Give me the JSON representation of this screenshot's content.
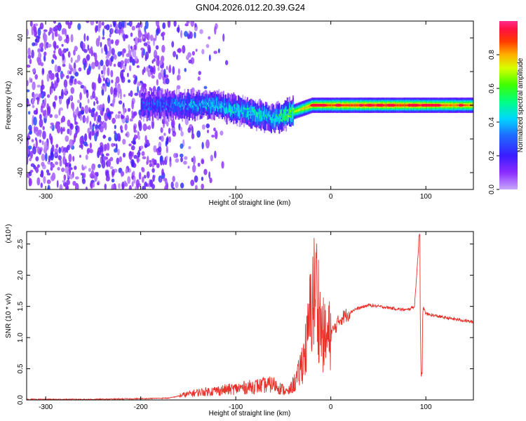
{
  "figure": {
    "title": "GN04.2026.012.20.39.G24"
  },
  "colors": {
    "spectrogram_low": "#c9a8ff",
    "spectrogram_high": "#ff2a6a",
    "snr_line": "#e8322a",
    "frame": "#000000"
  },
  "chart_data": [
    {
      "type": "heatmap",
      "xlabel": "Height of straight line (km)",
      "ylabel": "Frequency (Hz)",
      "xlim": [
        -320,
        150
      ],
      "ylim": [
        -50,
        50
      ],
      "x_ticks": [
        -300,
        -200,
        -100,
        0,
        100
      ],
      "y_ticks": [
        -40,
        -20,
        0,
        20,
        40
      ],
      "grid": false,
      "colorbar": {
        "label": "Normalized spectral amplitude",
        "colormap": "rainbow (violet to red)",
        "range": [
          0.0,
          1.0
        ],
        "ticks": [
          0.0,
          0.2,
          0.4,
          0.6,
          0.8
        ]
      },
      "description_points": [
        {
          "height_km": -300,
          "freq_hz": 0,
          "amplitude": 0.1
        },
        {
          "height_km": -180,
          "freq_hz": 0,
          "amplitude": 0.3
        },
        {
          "height_km": -120,
          "freq_hz": 0,
          "amplitude": 0.45
        },
        {
          "height_km": -60,
          "freq_hz": -8,
          "amplitude": 0.5
        },
        {
          "height_km": -20,
          "freq_hz": 0,
          "amplitude": 0.85
        },
        {
          "height_km": 20,
          "freq_hz": 0,
          "amplitude": 0.9
        },
        {
          "height_km": 88,
          "freq_hz": 0,
          "amplitude": 0.9
        },
        {
          "height_km": 110,
          "freq_hz": 0,
          "amplitude": 0.85
        }
      ]
    },
    {
      "type": "line",
      "xlabel": "Height of straight line (km)",
      "ylabel": "SNR (10 * v/v)",
      "y_multiplier_label": "(x10⁴)",
      "xlim": [
        -320,
        150
      ],
      "ylim": [
        0,
        2.7
      ],
      "x_ticks": [
        -300,
        -200,
        -100,
        0,
        100
      ],
      "y_ticks": [
        0.0,
        0.5,
        1.0,
        1.5,
        2.0,
        2.5
      ],
      "grid": false,
      "series": [
        {
          "x": [
            -320,
            -250,
            -200,
            -170,
            -155,
            -140,
            -120,
            -100,
            -80,
            -60,
            -45,
            -35,
            -25,
            -20,
            -15,
            -10,
            -5,
            0,
            10,
            25,
            40,
            60,
            80,
            88,
            93,
            95,
            97,
            100,
            120,
            150
          ],
          "y": [
            0.01,
            0.01,
            0.02,
            0.03,
            0.08,
            0.12,
            0.15,
            0.18,
            0.22,
            0.25,
            0.12,
            0.35,
            0.9,
            1.6,
            1.8,
            1.1,
            0.95,
            1.05,
            1.3,
            1.45,
            1.52,
            1.48,
            1.44,
            1.5,
            2.6,
            0.35,
            1.5,
            1.38,
            1.32,
            1.25
          ]
        }
      ]
    }
  ]
}
